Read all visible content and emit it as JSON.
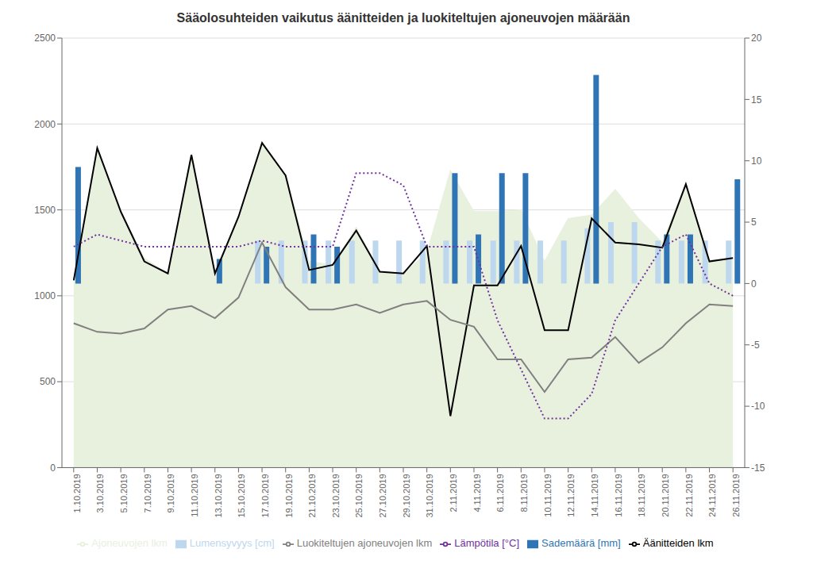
{
  "chart_data": {
    "type": "combo",
    "title": "Sääolosuhteiden vaikutus äänitteiden ja luokiteltujen ajoneuvojen määrään",
    "categories": [
      "1.10.2019",
      "3.10.2019",
      "5.10.2019",
      "7.10.2019",
      "9.10.2019",
      "11.10.2019",
      "13.10.2019",
      "15.10.2019",
      "17.10.2019",
      "19.10.2019",
      "21.10.2019",
      "23.10.2019",
      "25.10.2019",
      "27.10.2019",
      "29.10.2019",
      "31.10.2019",
      "2.11.2019",
      "4.11.2019",
      "6.11.2019",
      "8.11.2019",
      "10.11.2019",
      "12.11.2019",
      "14.11.2019",
      "16.11.2019",
      "18.11.2019",
      "20.11.2019",
      "22.11.2019",
      "24.11.2019",
      "26.11.2019"
    ],
    "series": [
      {
        "name": "Ajoneuvojen lkm",
        "type": "area",
        "color": "#e8f0de",
        "values": [
          1100,
          1860,
          1490,
          1220,
          1130,
          1820,
          1130,
          1460,
          1900,
          1700,
          1200,
          1180,
          1400,
          1140,
          1130,
          1250,
          1730,
          1490,
          1490,
          1500,
          1200,
          1450,
          1470,
          1620,
          1450,
          1310,
          1660,
          1210,
          1210
        ]
      },
      {
        "name": "Lumensyvyys [cm]",
        "type": "bar",
        "axis": "y2",
        "color": "#bdd7ee",
        "values": [
          0,
          0,
          0,
          0,
          0,
          0,
          0,
          0,
          3.5,
          3.5,
          3.5,
          3.5,
          3.5,
          3.5,
          3.5,
          3.5,
          3.5,
          3.5,
          3.5,
          3.5,
          3.5,
          3.5,
          4.5,
          5,
          5,
          3.5,
          3.5,
          3.5,
          3.5
        ]
      },
      {
        "name": "Sademäärä [mm]",
        "type": "bar",
        "axis": "y2",
        "color": "#2f75b6",
        "values": [
          9.5,
          0,
          0,
          0,
          0,
          0,
          2,
          0,
          3,
          0,
          4,
          3,
          0,
          0,
          0,
          0,
          9,
          4,
          9,
          9,
          0,
          0,
          17,
          0,
          0,
          4,
          4,
          0,
          8.5
        ]
      },
      {
        "name": "Äänitteiden lkm",
        "type": "line",
        "color": "#000000",
        "values": [
          1090,
          1860,
          1490,
          1200,
          1130,
          1820,
          1130,
          1460,
          1890,
          1700,
          1150,
          1180,
          1380,
          1140,
          1130,
          1290,
          300,
          1060,
          1060,
          1290,
          800,
          800,
          1450,
          1310,
          1300,
          1280,
          1650,
          1200,
          1220
        ]
      },
      {
        "name": "Luokiteltujen ajoneuvojen lkm",
        "type": "line",
        "color": "#808080",
        "values": [
          840,
          790,
          780,
          810,
          920,
          940,
          870,
          990,
          1310,
          1050,
          920,
          920,
          950,
          900,
          950,
          970,
          860,
          820,
          630,
          630,
          440,
          630,
          640,
          760,
          610,
          700,
          840,
          950,
          940
        ]
      },
      {
        "name": "Lämpötila [°C]",
        "type": "line",
        "axis": "y2",
        "color": "#7030a0",
        "line_style": "dotted",
        "values": [
          3,
          4,
          3.5,
          3,
          3,
          3,
          3,
          3,
          3.5,
          3,
          3,
          3,
          9,
          9,
          8,
          3,
          3,
          3,
          -3,
          -7,
          -11,
          -11,
          -9,
          -3,
          0,
          3,
          4,
          0,
          -1
        ]
      }
    ],
    "ylim": [
      0,
      2500
    ],
    "yticks": [
      0,
      500,
      1000,
      1500,
      2000,
      2500
    ],
    "y2lim": [
      -15,
      20
    ],
    "y2ticks": [
      -15,
      -10,
      -5,
      0,
      5,
      10,
      15,
      20
    ],
    "grid": true,
    "legend": "bottom"
  }
}
